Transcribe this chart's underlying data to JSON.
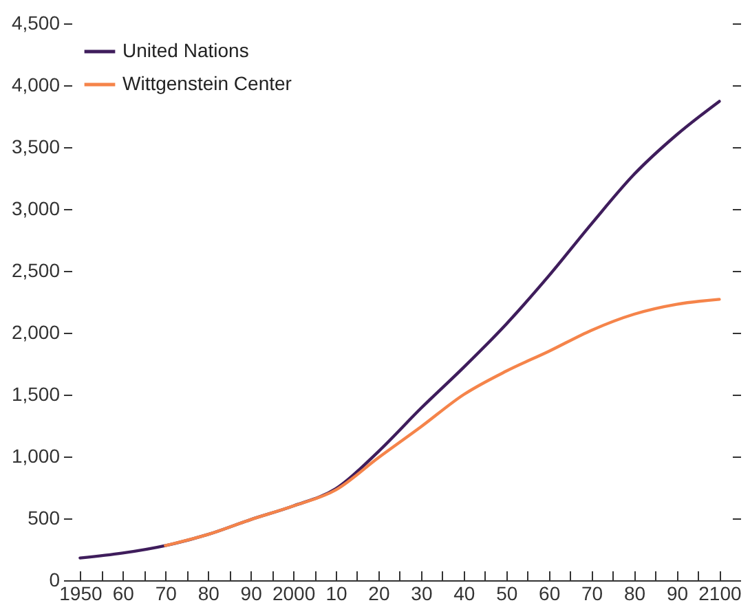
{
  "chart_data": {
    "type": "line",
    "x": [
      1950,
      1960,
      1970,
      1980,
      1990,
      2000,
      2010,
      2020,
      2030,
      2040,
      2050,
      2060,
      2070,
      2080,
      2090,
      2100
    ],
    "series": [
      {
        "name": "United Nations",
        "color": "#3f1d5c",
        "values": [
          180,
          220,
          280,
          370,
          490,
          600,
          740,
          1040,
          1390,
          1720,
          2070,
          2460,
          2880,
          3280,
          3600,
          3870
        ]
      },
      {
        "name": "Wittgenstein Center",
        "color": "#f5844a",
        "values": [
          null,
          null,
          280,
          370,
          490,
          600,
          730,
          990,
          1240,
          1500,
          1690,
          1850,
          2020,
          2150,
          2230,
          2270
        ]
      }
    ],
    "xlim": [
      1948,
      2103
    ],
    "xticks": [
      1950,
      {
        "value": 1955,
        "label": null
      },
      {
        "value": 1960,
        "label": "60"
      },
      {
        "value": 1965,
        "label": null
      },
      {
        "value": 1970,
        "label": "70"
      },
      {
        "value": 1975,
        "label": null
      },
      {
        "value": 1980,
        "label": "80"
      },
      {
        "value": 1985,
        "label": null
      },
      {
        "value": 1990,
        "label": "90"
      },
      {
        "value": 1995,
        "label": null
      },
      2000,
      {
        "value": 2005,
        "label": null
      },
      {
        "value": 2010,
        "label": "10"
      },
      {
        "value": 2015,
        "label": null
      },
      {
        "value": 2020,
        "label": "20"
      },
      {
        "value": 2025,
        "label": null
      },
      {
        "value": 2030,
        "label": "30"
      },
      {
        "value": 2035,
        "label": null
      },
      {
        "value": 2040,
        "label": "40"
      },
      {
        "value": 2045,
        "label": null
      },
      {
        "value": 2050,
        "label": "50"
      },
      {
        "value": 2055,
        "label": null
      },
      {
        "value": 2060,
        "label": "60"
      },
      {
        "value": 2065,
        "label": null
      },
      {
        "value": 2070,
        "label": "70"
      },
      {
        "value": 2075,
        "label": null
      },
      {
        "value": 2080,
        "label": "80"
      },
      {
        "value": 2085,
        "label": null
      },
      {
        "value": 2090,
        "label": "90"
      },
      {
        "value": 2095,
        "label": null
      },
      2100
    ],
    "ylim": [
      0,
      4500
    ],
    "yticks": [
      0,
      500,
      {
        "value": 1000,
        "label": "1,000"
      },
      {
        "value": 1500,
        "label": "1,500"
      },
      {
        "value": 2000,
        "label": "2,000"
      },
      {
        "value": 2500,
        "label": "2,500"
      },
      {
        "value": 3000,
        "label": "3,000"
      },
      {
        "value": 3500,
        "label": "3,500"
      },
      {
        "value": 4000,
        "label": "4,000"
      },
      {
        "value": 4500,
        "label": "4,500"
      }
    ],
    "legend": "top left",
    "grid": false,
    "marker": "none",
    "line_style": "solid"
  }
}
